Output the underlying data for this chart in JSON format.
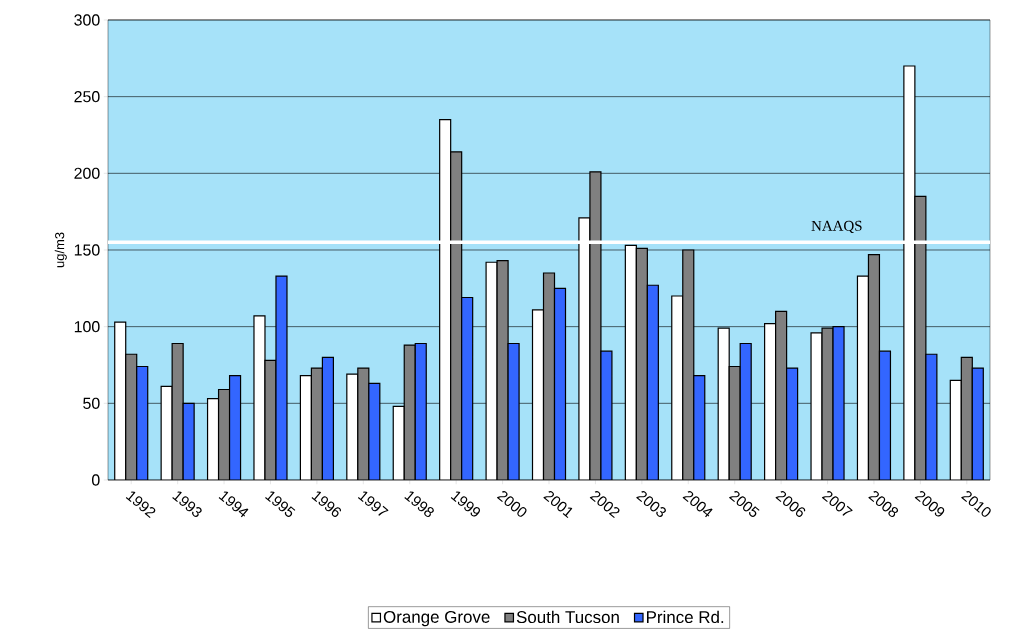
{
  "chart_data": {
    "type": "bar",
    "ylabel": "ug/m3",
    "categories": [
      "1992",
      "1993",
      "1994",
      "1995",
      "1996",
      "1997",
      "1998",
      "1999",
      "2000",
      "2001",
      "2002",
      "2003",
      "2004",
      "2005",
      "2006",
      "2007",
      "2008",
      "2009",
      "2010"
    ],
    "series": [
      {
        "name": "Orange Grove",
        "color": "#ffffff",
        "values": [
          103,
          61,
          53,
          107,
          68,
          69,
          48,
          235,
          142,
          111,
          171,
          153,
          120,
          99,
          102,
          96,
          133,
          270,
          65
        ]
      },
      {
        "name": "South Tucson",
        "color": "#808080",
        "values": [
          82,
          89,
          59,
          78,
          73,
          73,
          88,
          214,
          143,
          135,
          201,
          151,
          150,
          74,
          110,
          99,
          147,
          185,
          80
        ]
      },
      {
        "name": "Prince Rd.",
        "color": "#3366ff",
        "values": [
          74,
          50,
          68,
          133,
          80,
          63,
          89,
          119,
          89,
          125,
          84,
          127,
          68,
          89,
          73,
          100,
          84,
          82,
          73
        ]
      }
    ],
    "ylim": [
      0,
      300
    ],
    "yticks": [
      0,
      50,
      100,
      150,
      200,
      250,
      300
    ],
    "grid": "y",
    "legend": "bottom",
    "ref_lines": [
      {
        "axis": "y",
        "value": 155,
        "label": "NAAQS",
        "color": "#ffffff"
      }
    ]
  }
}
